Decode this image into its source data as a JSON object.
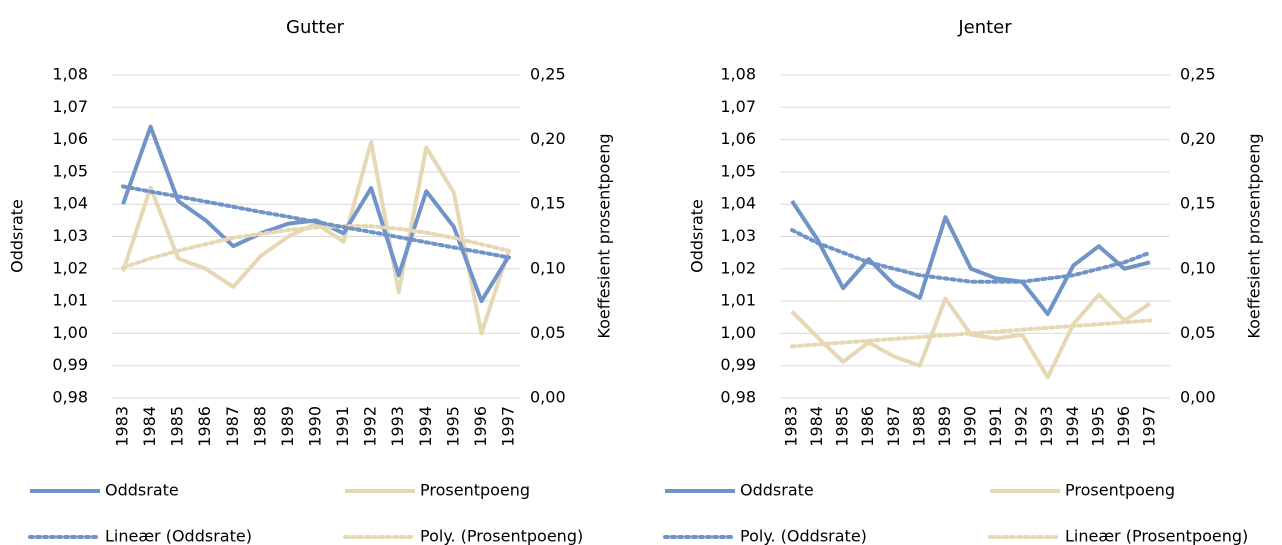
{
  "chart_data": [
    {
      "type": "line",
      "title": "Gutter",
      "y_label": "Oddsrate",
      "y2_label": "Koeffesient prosentpoeng",
      "categories": [
        "1983",
        "1984",
        "1985",
        "1986",
        "1987",
        "1988",
        "1989",
        "1990",
        "1991",
        "1992",
        "1993",
        "1994",
        "1995",
        "1996",
        "1997"
      ],
      "ylim": [
        0.98,
        1.08
      ],
      "yticks": [
        {
          "value": 0.98,
          "label": "0,98"
        },
        {
          "value": 0.99,
          "label": "0,99"
        },
        {
          "value": 1.0,
          "label": "1,00"
        },
        {
          "value": 1.01,
          "label": "1,01"
        },
        {
          "value": 1.02,
          "label": "1,02"
        },
        {
          "value": 1.03,
          "label": "1,03"
        },
        {
          "value": 1.04,
          "label": "1,04"
        },
        {
          "value": 1.05,
          "label": "1,05"
        },
        {
          "value": 1.06,
          "label": "1,06"
        },
        {
          "value": 1.07,
          "label": "1,07"
        },
        {
          "value": 1.08,
          "label": "1,08"
        }
      ],
      "y2lim": [
        0,
        0.25
      ],
      "y2ticks": [
        {
          "value": 0,
          "label": "0,00"
        },
        {
          "value": 0.05,
          "label": "0,05"
        },
        {
          "value": 0.1,
          "label": "0,10"
        },
        {
          "value": 0.15,
          "label": "0,15"
        },
        {
          "value": 0.2,
          "label": "0,20"
        },
        {
          "value": 0.25,
          "label": "0,25"
        }
      ],
      "grid": true,
      "series": [
        {
          "name": "Oddsrate",
          "color": "#7094c8",
          "style": "solid",
          "values": [
            1.04,
            1.064,
            1.041,
            1.035,
            1.027,
            1.031,
            1.034,
            1.035,
            1.031,
            1.045,
            1.018,
            1.044,
            1.033,
            1.01,
            1.024
          ]
        },
        {
          "name": "Prosentpoeng",
          "color": "#e6d8b5",
          "style": "solid",
          "axis": "y2",
          "values": [
            0.098,
            0.163,
            0.108,
            0.1,
            0.086,
            0.11,
            0.125,
            0.135,
            0.121,
            0.198,
            0.082,
            0.194,
            0.159,
            0.05,
            0.115
          ]
        },
        {
          "name": "Lineær (Oddsrate)",
          "color": "#7094c8",
          "style": "dotted",
          "values": [
            1.0455,
            1.0439,
            1.0424,
            1.0408,
            1.0392,
            1.0376,
            1.0361,
            1.0345,
            1.0329,
            1.0314,
            1.0298,
            1.0282,
            1.0266,
            1.0251,
            1.0235
          ]
        },
        {
          "name": "Poly. (Prosentpoeng)",
          "color": "#e6d8b5",
          "style": "dotted",
          "axis": "y2",
          "values": [
            0.101,
            0.108,
            0.114,
            0.119,
            0.124,
            0.127,
            0.13,
            0.132,
            0.133,
            0.133,
            0.131,
            0.128,
            0.124,
            0.119,
            0.114
          ]
        }
      ]
    },
    {
      "type": "line",
      "title": "Jenter",
      "y_label": "Oddsrate",
      "y2_label": "Koeffesient prosentpoeng",
      "categories": [
        "1983",
        "1984",
        "1985",
        "1986",
        "1987",
        "1988",
        "1989",
        "1990",
        "1991",
        "1992",
        "1993",
        "1994",
        "1995",
        "1996",
        "1997"
      ],
      "ylim": [
        0.98,
        1.08
      ],
      "yticks": [
        {
          "value": 0.98,
          "label": "0,98"
        },
        {
          "value": 0.99,
          "label": "0,99"
        },
        {
          "value": 1.0,
          "label": "1,00"
        },
        {
          "value": 1.01,
          "label": "1,01"
        },
        {
          "value": 1.02,
          "label": "1,02"
        },
        {
          "value": 1.03,
          "label": "1,03"
        },
        {
          "value": 1.04,
          "label": "1,04"
        },
        {
          "value": 1.05,
          "label": "1,05"
        },
        {
          "value": 1.06,
          "label": "1,06"
        },
        {
          "value": 1.07,
          "label": "1,07"
        },
        {
          "value": 1.08,
          "label": "1,08"
        }
      ],
      "y2lim": [
        0,
        0.25
      ],
      "y2ticks": [
        {
          "value": 0,
          "label": "0,00"
        },
        {
          "value": 0.05,
          "label": "0,05"
        },
        {
          "value": 0.1,
          "label": "0,10"
        },
        {
          "value": 0.15,
          "label": "0,15"
        },
        {
          "value": 0.2,
          "label": "0,20"
        },
        {
          "value": 0.25,
          "label": "0,25"
        }
      ],
      "grid": true,
      "series": [
        {
          "name": "Oddsrate",
          "color": "#7094c8",
          "style": "solid",
          "values": [
            1.041,
            1.029,
            1.014,
            1.023,
            1.015,
            1.011,
            1.036,
            1.02,
            1.017,
            1.016,
            1.006,
            1.021,
            1.027,
            1.02,
            1.022
          ]
        },
        {
          "name": "Prosentpoeng",
          "color": "#e6d8b5",
          "style": "solid",
          "axis": "y2",
          "values": [
            0.067,
            0.047,
            0.028,
            0.043,
            0.032,
            0.025,
            0.077,
            0.049,
            0.046,
            0.049,
            0.016,
            0.057,
            0.08,
            0.06,
            0.073
          ]
        },
        {
          "name": "Poly. (Oddsrate)",
          "color": "#7094c8",
          "style": "dotted",
          "values": [
            1.032,
            1.028,
            1.025,
            1.022,
            1.02,
            1.018,
            1.017,
            1.016,
            1.016,
            1.016,
            1.017,
            1.018,
            1.02,
            1.022,
            1.025
          ]
        },
        {
          "name": "Lineær (Prosentpoeng)",
          "color": "#e6d8b5",
          "style": "dotted",
          "axis": "y2",
          "values": [
            0.04,
            0.0414,
            0.0429,
            0.0443,
            0.0457,
            0.0471,
            0.0486,
            0.05,
            0.0514,
            0.0529,
            0.0543,
            0.0557,
            0.0571,
            0.0586,
            0.06
          ]
        }
      ]
    }
  ]
}
